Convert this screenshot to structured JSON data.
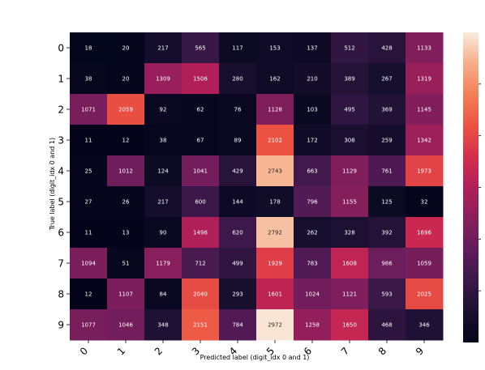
{
  "chart_data": {
    "type": "heatmap",
    "title": "",
    "xlabel": "Predicted label (digit_idx 0 and 1)",
    "ylabel": "True label (digit_idx 0 and 1)",
    "x_categories": [
      "0",
      "1",
      "2",
      "3",
      "4",
      "5",
      "6",
      "7",
      "8",
      "9"
    ],
    "y_categories": [
      "0",
      "1",
      "2",
      "3",
      "4",
      "5",
      "6",
      "7",
      "8",
      "9"
    ],
    "values": [
      [
        18,
        20,
        217,
        565,
        117,
        153,
        137,
        512,
        428,
        1133
      ],
      [
        38,
        20,
        1309,
        1506,
        280,
        162,
        210,
        389,
        267,
        1319
      ],
      [
        1071,
        2059,
        92,
        62,
        76,
        1128,
        103,
        495,
        369,
        1145
      ],
      [
        11,
        12,
        38,
        67,
        89,
        2102,
        172,
        308,
        259,
        1342
      ],
      [
        25,
        1012,
        124,
        1041,
        429,
        2743,
        663,
        1129,
        761,
        1973
      ],
      [
        27,
        26,
        217,
        600,
        144,
        178,
        796,
        1155,
        125,
        32
      ],
      [
        11,
        13,
        90,
        1496,
        620,
        2792,
        262,
        328,
        392,
        1696
      ],
      [
        1094,
        51,
        1179,
        712,
        499,
        1929,
        783,
        1608,
        986,
        1059
      ],
      [
        12,
        1107,
        84,
        2040,
        293,
        1601,
        1024,
        1121,
        593,
        2025
      ],
      [
        1077,
        1046,
        348,
        2151,
        784,
        2972,
        1258,
        1650,
        468,
        346
      ]
    ],
    "colorbar": {
      "min": 0,
      "max": 3000,
      "colormap": "rocket"
    },
    "grid": false
  }
}
